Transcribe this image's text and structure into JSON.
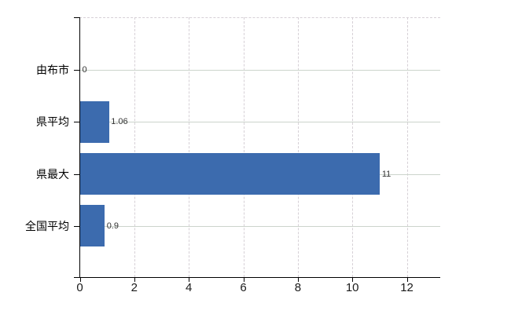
{
  "chart_data": {
    "type": "bar",
    "orientation": "horizontal",
    "title": "",
    "xlabel": "",
    "ylabel": "",
    "categories": [
      "由布市",
      "県平均",
      "県最大",
      "全国平均"
    ],
    "values": [
      0,
      1.06,
      11,
      0.9
    ],
    "value_labels": [
      "0",
      "1.06",
      "11",
      "0.9"
    ],
    "x_ticks": [
      "0",
      "2",
      "4",
      "6",
      "8",
      "10",
      "12"
    ],
    "x_tick_values": [
      0,
      2,
      4,
      6,
      8,
      10,
      12
    ],
    "xlim": [
      0,
      13.2
    ],
    "grid": "on",
    "legend": "none",
    "gridline_style": {
      "horizontal": "solid",
      "vertical": "dashed",
      "plot_top_border": "dashed"
    },
    "colors": {
      "bar": "#3c6bae",
      "h_gridline": "#ccd4cc",
      "v_gridline": "#d6d0d6",
      "axis": "#000000",
      "category_label": "#000000",
      "tick_label": "#1a1a1a",
      "value_label": "#333333",
      "background": "#ffffff"
    }
  }
}
